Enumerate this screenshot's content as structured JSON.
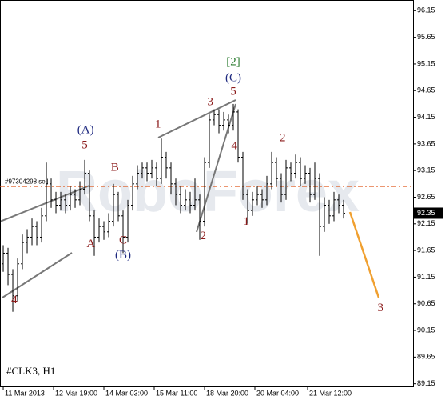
{
  "chart_data": {
    "type": "ohlc",
    "symbol": "#CLK3, H1",
    "watermark": "RoboForex",
    "color": "#000000",
    "open": [
      91.4,
      91.6,
      91.2,
      90.8,
      91.4,
      91.8,
      91.9,
      92.1,
      91.9,
      92.3,
      92.9,
      92.6,
      92.5,
      92.6,
      92.5,
      92.7,
      92.6,
      92.8,
      93.1,
      92.3,
      91.9,
      92.1,
      92.0,
      92.2,
      92.7,
      92.3,
      91.9,
      92.5,
      92.9,
      93.1,
      93.2,
      93.1,
      93.2,
      93.0,
      93.4,
      93.2,
      92.9,
      92.7,
      92.5,
      92.6,
      92.5,
      92.6,
      92.2,
      93.3,
      94.1,
      94.2,
      94.0,
      94.1,
      94.0,
      94.25,
      93.4,
      92.7,
      92.4,
      92.6,
      92.7,
      92.6,
      92.9,
      93.3,
      93.0,
      92.7,
      93.2,
      93.1,
      93.3,
      93.0,
      93.1,
      92.7,
      93.0,
      92.1,
      92.5,
      92.3,
      92.6,
      92.5
    ],
    "high": [
      91.75,
      91.7,
      91.3,
      91.5,
      91.95,
      92.05,
      92.25,
      92.2,
      92.45,
      93.3,
      93.0,
      92.75,
      92.75,
      92.7,
      92.85,
      92.8,
      92.95,
      93.35,
      93.15,
      92.4,
      92.25,
      92.2,
      92.35,
      92.9,
      92.75,
      92.4,
      92.6,
      93.05,
      93.25,
      93.3,
      93.3,
      93.35,
      93.3,
      93.75,
      93.5,
      93.3,
      93.0,
      92.85,
      92.8,
      92.75,
      93.0,
      92.7,
      93.4,
      94.2,
      94.3,
      94.3,
      94.25,
      94.2,
      94.4,
      94.3,
      93.5,
      92.8,
      92.75,
      92.85,
      92.8,
      93.05,
      93.5,
      93.4,
      93.1,
      93.35,
      93.3,
      93.45,
      93.4,
      93.25,
      93.2,
      93.3,
      93.1,
      92.65,
      92.6,
      92.75,
      92.7,
      92.6
    ],
    "low": [
      91.25,
      91.0,
      90.5,
      90.7,
      91.3,
      91.6,
      91.75,
      91.75,
      91.8,
      92.2,
      92.45,
      92.35,
      92.4,
      92.35,
      92.4,
      92.45,
      92.5,
      92.7,
      92.2,
      91.55,
      91.8,
      91.85,
      91.9,
      92.1,
      92.2,
      91.6,
      91.8,
      92.4,
      92.8,
      93.0,
      92.95,
      93.0,
      92.85,
      92.9,
      93.0,
      92.7,
      92.5,
      92.35,
      92.4,
      92.35,
      92.4,
      91.85,
      92.1,
      93.2,
      94.0,
      93.85,
      93.9,
      93.85,
      93.9,
      93.3,
      92.6,
      92.15,
      92.3,
      92.5,
      92.45,
      92.5,
      92.8,
      92.85,
      92.55,
      92.6,
      92.95,
      93.0,
      92.85,
      92.9,
      92.55,
      92.6,
      91.55,
      92.0,
      92.15,
      92.2,
      92.35,
      92.25
    ],
    "close": [
      91.6,
      91.2,
      90.8,
      91.4,
      91.8,
      91.9,
      92.1,
      91.9,
      92.3,
      92.9,
      92.6,
      92.5,
      92.6,
      92.5,
      92.7,
      92.6,
      92.8,
      93.1,
      92.3,
      91.9,
      92.1,
      92.0,
      92.2,
      92.7,
      92.3,
      91.9,
      92.5,
      92.9,
      93.1,
      93.2,
      93.1,
      93.2,
      93.0,
      93.4,
      93.2,
      92.9,
      92.7,
      92.5,
      92.6,
      92.5,
      92.6,
      92.2,
      93.3,
      94.1,
      94.2,
      94.0,
      94.1,
      94.0,
      94.25,
      93.4,
      92.7,
      92.4,
      92.6,
      92.7,
      92.6,
      92.9,
      93.3,
      93.0,
      92.7,
      93.2,
      93.1,
      93.3,
      93.0,
      93.1,
      92.7,
      93.0,
      92.1,
      92.5,
      92.3,
      92.6,
      92.5,
      92.35
    ],
    "xlim": [
      -0.67,
      85.5
    ],
    "xticks": [
      {
        "value": 0,
        "label": "11 Mar 2013"
      },
      {
        "value": 10.5,
        "label": "12 Mar 19:00"
      },
      {
        "value": 21,
        "label": "14 Mar 03:00"
      },
      {
        "value": 31.5,
        "label": "15 Mar 11:00"
      },
      {
        "value": 42,
        "label": "18 Mar 20:00"
      },
      {
        "value": 52.5,
        "label": "20 Mar 04:00"
      },
      {
        "value": 63.5,
        "label": "21 Mar 12:00"
      }
    ],
    "ylim": [
      89.1,
      96.35
    ],
    "yticks": [
      96.15,
      95.65,
      95.15,
      94.65,
      94.15,
      93.65,
      93.15,
      92.65,
      92.15,
      91.65,
      91.15,
      90.65,
      90.15,
      89.65,
      89.15
    ],
    "order_line": {
      "label": "#97304298 sell",
      "value": 92.85,
      "color": "#e0581b"
    },
    "last_price": 92.35,
    "annotations": [
      {
        "text": "4",
        "x": 2.3,
        "y": 90.71,
        "color": "#8b1a1a"
      },
      {
        "text": "(A)",
        "x": 17.2,
        "y": 93.9,
        "color": "#1f2a80"
      },
      {
        "text": "5",
        "x": 17,
        "y": 93.62,
        "color": "#8b1a1a"
      },
      {
        "text": "A",
        "x": 18.3,
        "y": 91.76,
        "color": "#8b1a1a"
      },
      {
        "text": "B",
        "x": 23.3,
        "y": 93.2,
        "color": "#8b1a1a"
      },
      {
        "text": "C",
        "x": 25,
        "y": 91.83,
        "color": "#8b1a1a"
      },
      {
        "text": "(B)",
        "x": 25,
        "y": 91.55,
        "color": "#1f2a80"
      },
      {
        "text": "1",
        "x": 32.3,
        "y": 94.01,
        "color": "#8b1a1a"
      },
      {
        "text": "2",
        "x": 41.7,
        "y": 91.91,
        "color": "#8b1a1a"
      },
      {
        "text": "3",
        "x": 43.2,
        "y": 94.43,
        "color": "#8b1a1a"
      },
      {
        "text": "5",
        "x": 48,
        "y": 94.62,
        "color": "#8b1a1a"
      },
      {
        "text": "(C)",
        "x": 48,
        "y": 94.88,
        "color": "#1f2a80"
      },
      {
        "text": "[2]",
        "x": 48,
        "y": 95.18,
        "color": "#2e7d32"
      },
      {
        "text": "4",
        "x": 48.2,
        "y": 93.6,
        "color": "#8b1a1a"
      },
      {
        "text": "1",
        "x": 50.7,
        "y": 92.18,
        "color": "#8b1a1a"
      },
      {
        "text": "2",
        "x": 58.3,
        "y": 93.75,
        "color": "#8b1a1a"
      },
      {
        "text": "3",
        "x": 78.7,
        "y": 90.56,
        "color": "#8b1a1a"
      }
    ]
  }
}
